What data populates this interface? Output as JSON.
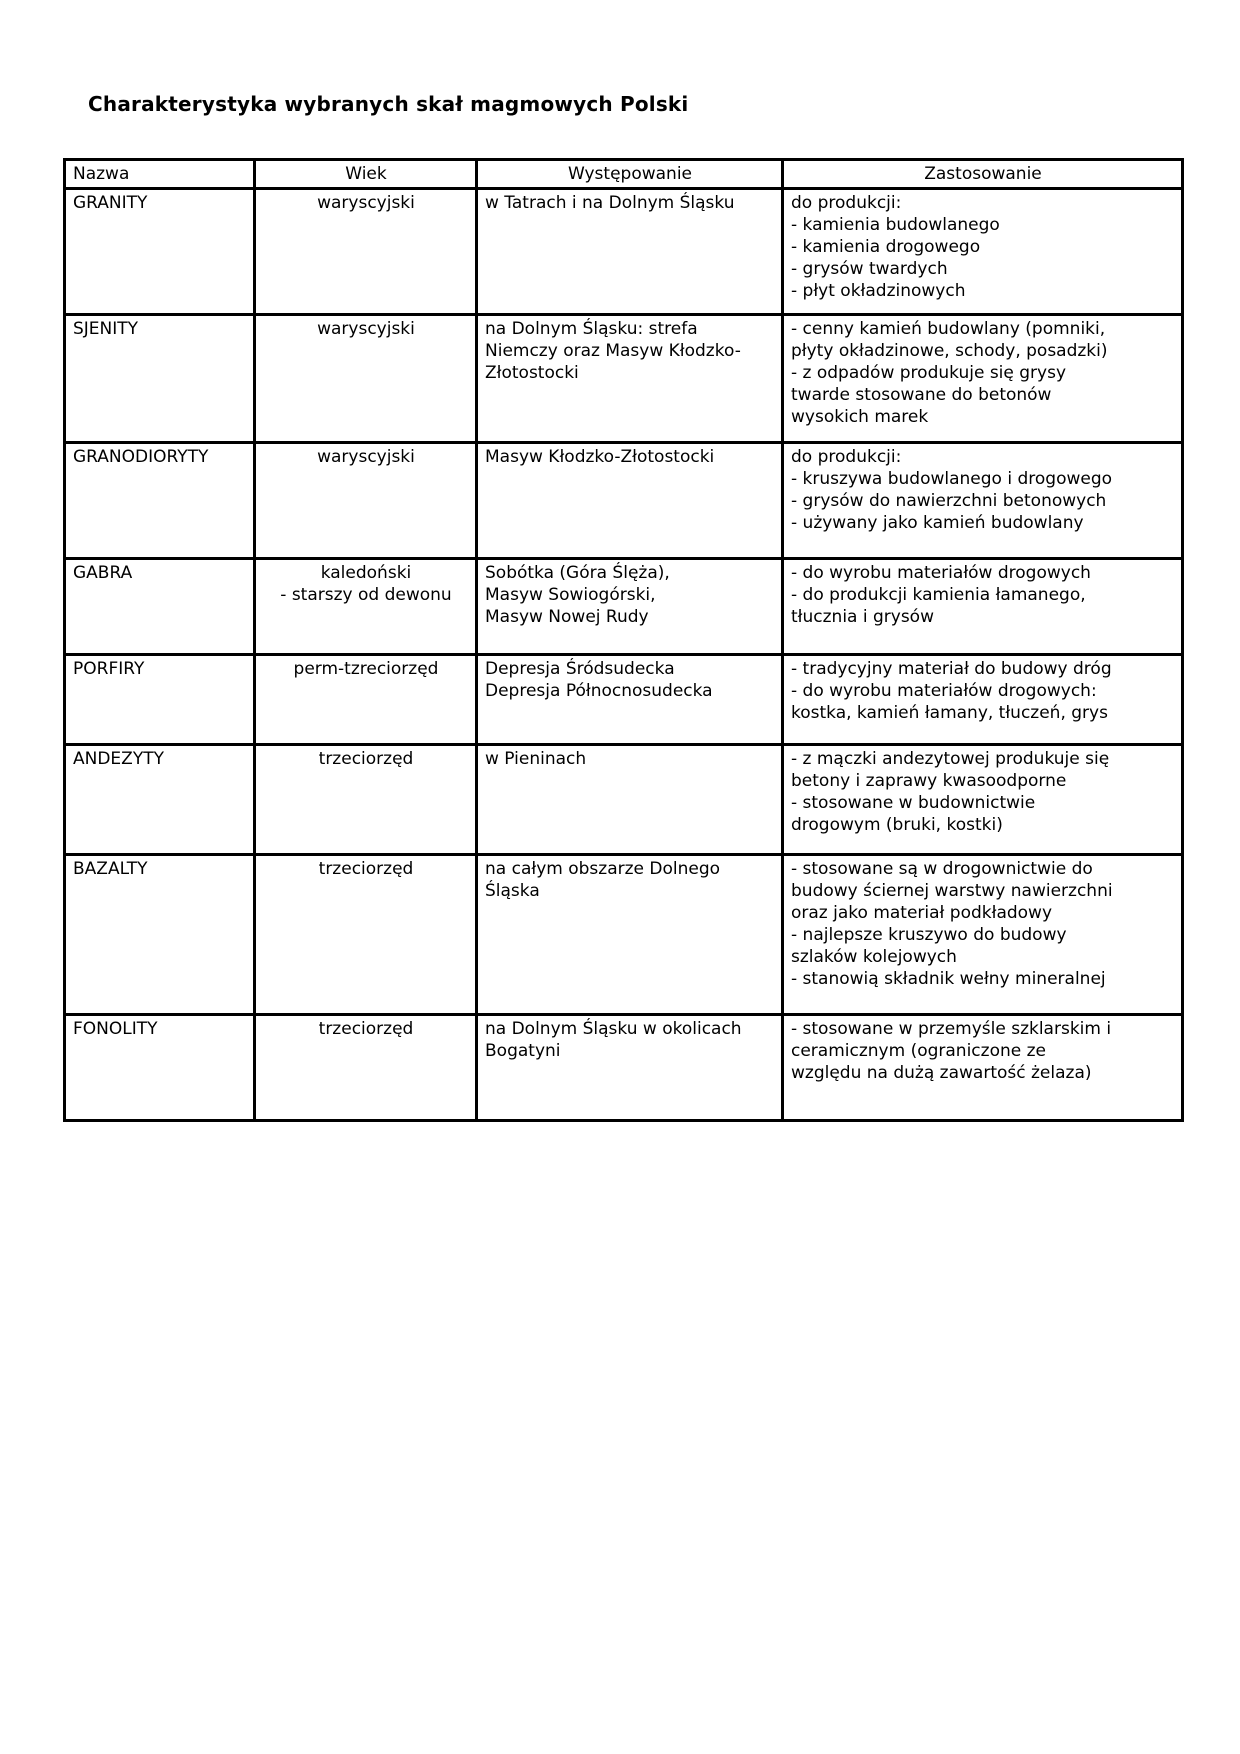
{
  "page": {
    "title": "Charakterystyka wybranych skał magmowych Polski"
  },
  "table": {
    "headers": [
      "Nazwa",
      "Wiek",
      "Występowanie",
      "Zastosowanie"
    ],
    "rows": [
      {
        "nazwa": "GRANITY",
        "wiek": "waryscyjski",
        "wystepowanie": "w Tatrach i na Dolnym Śląsku",
        "zastosowanie": "do produkcji:\n- kamienia budowlanego\n- kamienia drogowego\n- grysów twardych\n- płyt okładzinowych"
      },
      {
        "nazwa": "SJENITY",
        "wiek": "waryscyjski",
        "wystepowanie": "na Dolnym Śląsku: strefa\nNiemczy oraz Masyw Kłodzko-\nZłotostocki",
        "zastosowanie": "- cenny kamień budowlany (pomniki,\npłyty okładzinowe, schody, posadzki)\n- z odpadów produkuje się grysy\ntwarde stosowane do betonów\nwysokich marek"
      },
      {
        "nazwa": "GRANODIORYTY",
        "wiek": "waryscyjski",
        "wystepowanie": "Masyw Kłodzko-Złotostocki",
        "zastosowanie": "do produkcji:\n- kruszywa budowlanego i drogowego\n- grysów do nawierzchni betonowych\n- używany jako kamień budowlany"
      },
      {
        "nazwa": "GABRA",
        "wiek": "kaledoński\n- starszy od dewonu",
        "wystepowanie": "Sobótka (Góra Ślęża),\nMasyw Sowiogórski,\nMasyw Nowej Rudy",
        "zastosowanie": "- do wyrobu materiałów drogowych\n- do produkcji kamienia łamanego,\ntłucznia i grysów"
      },
      {
        "nazwa": "PORFIRY",
        "wiek": "perm-tzreciorzęd",
        "wystepowanie": "Depresja Śródsudecka\nDepresja Północnosudecka",
        "zastosowanie": "- tradycyjny materiał do budowy dróg\n- do wyrobu materiałów drogowych:\nkostka, kamień łamany, tłuczeń, grys"
      },
      {
        "nazwa": "ANDEZYTY",
        "wiek": "trzeciorzęd",
        "wystepowanie": "w Pieninach",
        "zastosowanie": "- z mączki andezytowej produkuje się\nbetony i zaprawy kwasoodporne\n- stosowane w budownictwie\ndrogowym (bruki, kostki)"
      },
      {
        "nazwa": "BAZALTY",
        "wiek": "trzeciorzęd",
        "wystepowanie": "na całym obszarze Dolnego\nŚląska",
        "zastosowanie": "- stosowane są w drogownictwie do\nbudowy ściernej warstwy nawierzchni\noraz jako materiał podkładowy\n- najlepsze kruszywo do budowy\nszlaków kolejowych\n- stanowią składnik wełny mineralnej"
      },
      {
        "nazwa": "FONOLITY",
        "wiek": "trzeciorzęd",
        "wystepowanie": "na Dolnym Śląsku w okolicach\nBogatyni",
        "zastosowanie": "- stosowane w przemyśle szklarskim i\nceramicznym (ograniczone ze\nwzględu na dużą zawartość żelaza)"
      }
    ]
  }
}
